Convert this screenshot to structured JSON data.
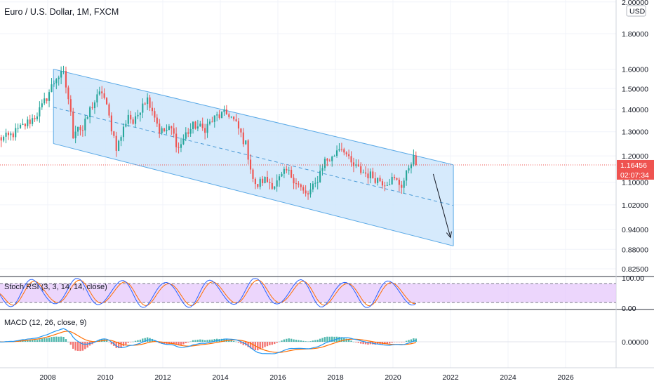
{
  "header": {
    "title": "Euro / U.S. Dollar, 1M, FXCM"
  },
  "price_axis": {
    "currency": "USD",
    "ticks": [
      "2.00000",
      "1.80000",
      "1.60000",
      "1.50000",
      "1.40000",
      "1.30000",
      "1.20000",
      "1.10000",
      "1.02000",
      "0.94000",
      "0.88000",
      "0.82500"
    ],
    "last_price": "1.16456",
    "countdown": "02:07:34"
  },
  "stoch_rsi": {
    "label": "Stoch RSI (3, 3, 14, 14, close)",
    "ticks": [
      "100.00",
      "0.00"
    ]
  },
  "macd": {
    "label": "MACD (12, 26, close, 9)",
    "ticks": [
      "0.00000"
    ]
  },
  "time_axis": {
    "ticks": [
      "2008",
      "2010",
      "2012",
      "2014",
      "2016",
      "2018",
      "2020",
      "2022",
      "2024",
      "2026"
    ]
  },
  "colors": {
    "up": "#26a69a",
    "down": "#ef5350",
    "channel": "#5aa9e6",
    "channel_fill": "#cfe6fb",
    "stoch_k": "#2962ff",
    "stoch_d": "#ff6d00",
    "stoch_band": "#e6c8fb",
    "macd_line": "#2196f3",
    "signal_line": "#ff6d00",
    "price_label": "#ef5350"
  },
  "chart_data": {
    "type": "candlestick",
    "symbol": "Euro / U.S. Dollar",
    "interval": "1M",
    "source": "FXCM",
    "y_scale": "log",
    "ylim": [
      0.8,
      2.02
    ],
    "xlim": [
      2006.3,
      2028.2
    ],
    "anchors": [
      [
        2006.3,
        1.27
      ],
      [
        2006.6,
        1.275
      ],
      [
        2006.9,
        1.3
      ],
      [
        2007.2,
        1.33
      ],
      [
        2007.5,
        1.36
      ],
      [
        2007.8,
        1.41
      ],
      [
        2008.0,
        1.47
      ],
      [
        2008.3,
        1.56
      ],
      [
        2008.55,
        1.57
      ],
      [
        2008.75,
        1.43
      ],
      [
        2008.9,
        1.27
      ],
      [
        2009.0,
        1.34
      ],
      [
        2009.2,
        1.3
      ],
      [
        2009.5,
        1.41
      ],
      [
        2009.9,
        1.49
      ],
      [
        2010.1,
        1.38
      ],
      [
        2010.4,
        1.23
      ],
      [
        2010.6,
        1.3
      ],
      [
        2010.8,
        1.38
      ],
      [
        2011.0,
        1.33
      ],
      [
        2011.3,
        1.44
      ],
      [
        2011.5,
        1.45
      ],
      [
        2011.7,
        1.38
      ],
      [
        2011.9,
        1.3
      ],
      [
        2012.3,
        1.31
      ],
      [
        2012.55,
        1.23
      ],
      [
        2012.8,
        1.29
      ],
      [
        2013.1,
        1.33
      ],
      [
        2013.4,
        1.31
      ],
      [
        2013.9,
        1.37
      ],
      [
        2014.3,
        1.38
      ],
      [
        2014.6,
        1.32
      ],
      [
        2014.9,
        1.24
      ],
      [
        2015.2,
        1.08
      ],
      [
        2015.5,
        1.11
      ],
      [
        2015.9,
        1.09
      ],
      [
        2016.3,
        1.14
      ],
      [
        2016.6,
        1.11
      ],
      [
        2016.9,
        1.06
      ],
      [
        2017.0,
        1.05
      ],
      [
        2017.3,
        1.09
      ],
      [
        2017.6,
        1.18
      ],
      [
        2017.9,
        1.19
      ],
      [
        2018.1,
        1.24
      ],
      [
        2018.3,
        1.23
      ],
      [
        2018.5,
        1.17
      ],
      [
        2018.9,
        1.14
      ],
      [
        2019.3,
        1.12
      ],
      [
        2019.7,
        1.1
      ],
      [
        2020.0,
        1.11
      ],
      [
        2020.15,
        1.1
      ],
      [
        2020.3,
        1.09
      ],
      [
        2020.45,
        1.12
      ],
      [
        2020.6,
        1.18
      ],
      [
        2020.7,
        1.19
      ],
      [
        2020.8,
        1.165
      ]
    ],
    "channel": {
      "upper": [
        [
          2008.2,
          1.6
        ],
        [
          2022.1,
          1.165
        ]
      ],
      "middle": [
        [
          2008.2,
          1.41
        ],
        [
          2022.1,
          1.018
        ]
      ],
      "lower": [
        [
          2008.2,
          1.25
        ],
        [
          2022.1,
          0.89
        ]
      ]
    },
    "arrow": {
      "from": [
        2021.4,
        1.13
      ],
      "to": [
        2022.0,
        0.915
      ]
    },
    "last_price": 1.16456
  }
}
